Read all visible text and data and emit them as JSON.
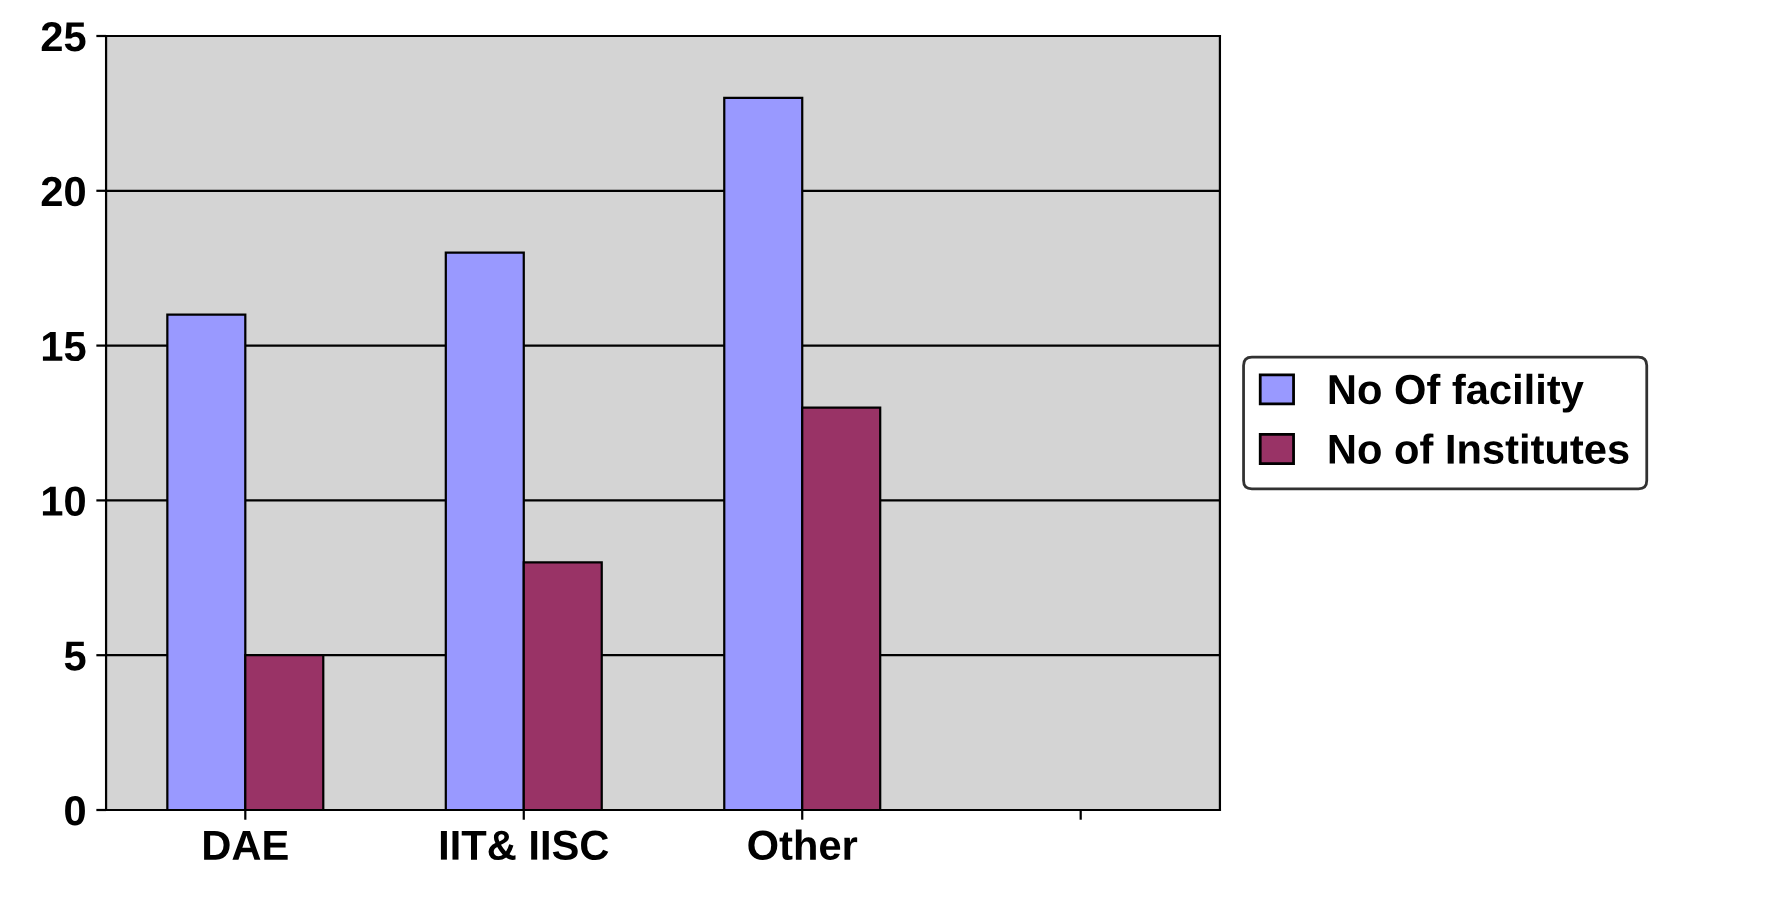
{
  "chart_data": {
    "type": "bar",
    "categories": [
      "DAE",
      "IIT& IISC",
      "Other",
      null
    ],
    "series": [
      {
        "name": "No Of facility",
        "color": "#9999ff",
        "values": [
          16,
          18,
          23,
          null
        ]
      },
      {
        "name": "No of Institutes",
        "color": "#993366",
        "values": [
          5,
          8,
          13,
          null
        ]
      }
    ],
    "ylim": [
      0,
      25
    ],
    "yticks": [
      0,
      5,
      10,
      15,
      20,
      25
    ],
    "grid": "y",
    "legend": "right"
  }
}
